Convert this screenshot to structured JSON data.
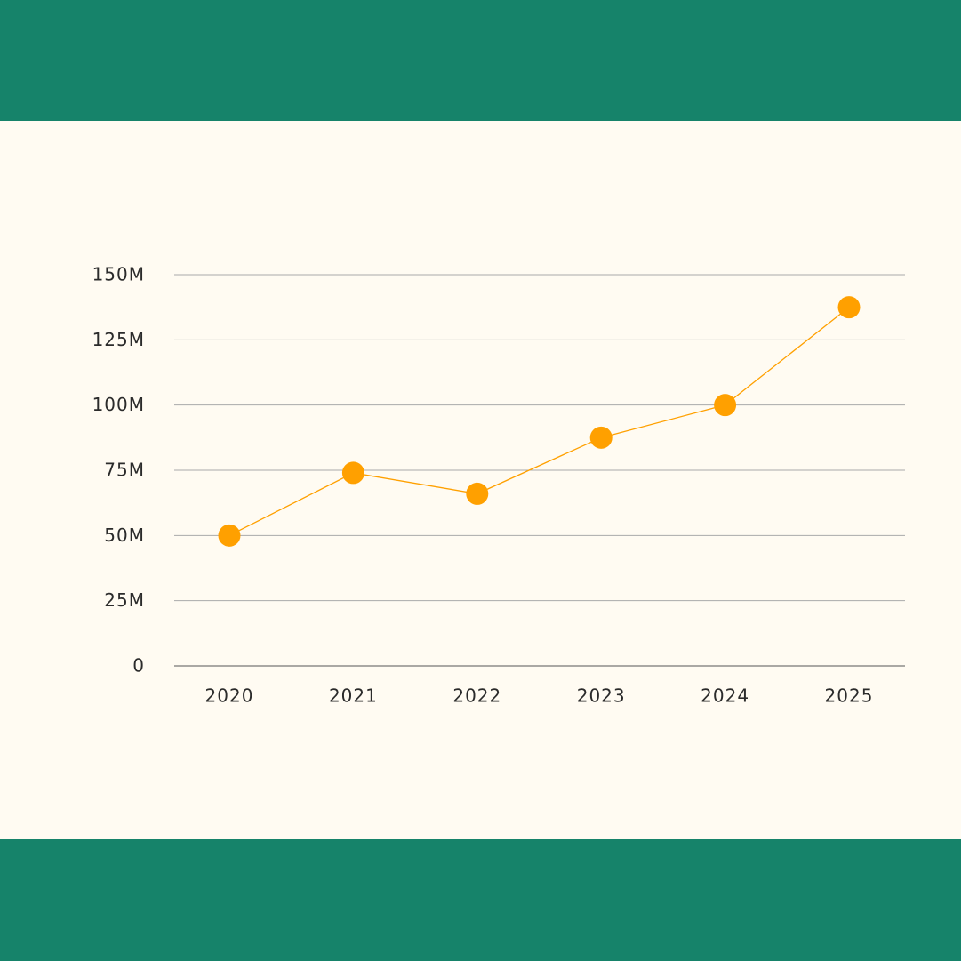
{
  "chart_data": {
    "type": "line",
    "categories": [
      "2020",
      "2021",
      "2022",
      "2023",
      "2024",
      "2025"
    ],
    "series": [
      {
        "color": "#ffa000",
        "values": [
          50000000,
          74000000,
          66000000,
          87500000,
          100000000,
          137500000
        ]
      }
    ],
    "ylim": [
      0,
      150000000
    ],
    "yticks": [
      0,
      {
        "value": 25000000,
        "label": "25M"
      },
      {
        "value": 50000000,
        "label": "50M"
      },
      {
        "value": 75000000,
        "label": "75M"
      },
      {
        "value": 100000000,
        "label": "100M"
      },
      {
        "value": 125000000,
        "label": "125M"
      },
      {
        "value": 150000000,
        "label": "150M"
      }
    ],
    "grid": true
  }
}
